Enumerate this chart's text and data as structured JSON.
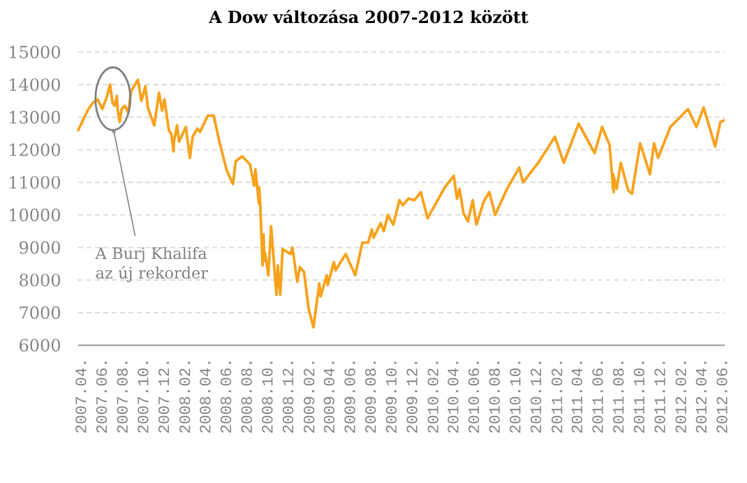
{
  "chart_data": {
    "type": "line",
    "title": "A Dow változása 2007-2012 között",
    "x": [
      "2007-03-24",
      "2007-04-09",
      "2007-04-23",
      "2007-05-07",
      "2007-05-20",
      "2007-06-03",
      "2007-06-17",
      "2007-06-26",
      "2007-07-03",
      "2007-07-09",
      "2007-07-16",
      "2007-07-18",
      "2007-07-24",
      "2007-07-30",
      "2007-08-08",
      "2007-08-18",
      "2007-08-27",
      "2007-09-16",
      "2007-09-26",
      "2007-10-08",
      "2007-10-15",
      "2007-11-03",
      "2007-11-17",
      "2007-11-26",
      "2007-12-03",
      "2007-12-16",
      "2007-12-23",
      "2007-12-30",
      "2007-12-31",
      "2008-01-09",
      "2008-01-15",
      "2008-02-04",
      "2008-02-16",
      "2008-02-24",
      "2008-03-09",
      "2008-03-17",
      "2008-04-09",
      "2008-04-26",
      "2008-05-14",
      "2008-06-04",
      "2008-06-22",
      "2008-06-30",
      "2008-07-19",
      "2008-08-11",
      "2008-08-23",
      "2008-08-27",
      "2008-09-06",
      "2008-09-07",
      "2008-09-10",
      "2008-09-17",
      "2008-09-20",
      "2008-09-22",
      "2008-09-24",
      "2008-09-29",
      "2008-10-04",
      "2008-10-12",
      "2008-10-28",
      "2008-11-01",
      "2008-11-08",
      "2008-11-15",
      "2008-12-08",
      "2008-12-14",
      "2008-12-28",
      "2009-01-05",
      "2009-01-17",
      "2009-01-31",
      "2009-02-14",
      "2009-03-03",
      "2009-03-07",
      "2009-03-25",
      "2009-03-28",
      "2009-04-15",
      "2009-04-20",
      "2009-05-20",
      "2009-06-17",
      "2009-07-08",
      "2009-07-25",
      "2009-08-05",
      "2009-08-10",
      "2009-08-31",
      "2009-09-09",
      "2009-09-21",
      "2009-10-07",
      "2009-10-25",
      "2009-11-04",
      "2009-11-21",
      "2009-12-08",
      "2009-12-27",
      "2010-01-16",
      "2010-03-08",
      "2010-04-03",
      "2010-04-13",
      "2010-04-20",
      "2010-05-02",
      "2010-05-15",
      "2010-05-29",
      "2010-06-09",
      "2010-06-30",
      "2010-07-17",
      "2010-08-03",
      "2010-09-07",
      "2010-10-13",
      "2010-10-24",
      "2010-12-08",
      "2011-01-26",
      "2011-02-21",
      "2011-04-06",
      "2011-05-23",
      "2011-06-14",
      "2011-07-06",
      "2011-07-12",
      "2011-07-16",
      "2011-07-17",
      "2011-07-18",
      "2011-07-19",
      "2011-07-27",
      "2011-08-08",
      "2011-08-30",
      "2011-09-10",
      "2011-10-04",
      "2011-11-02",
      "2011-11-14",
      "2011-11-26",
      "2012-01-01",
      "2012-02-22",
      "2012-03-18",
      "2012-04-08",
      "2012-05-12",
      "2012-05-27",
      "2012-06-06"
    ],
    "series": [
      {
        "color": "#f7a21b",
        "values": [
          12600,
          12950,
          13250,
          13450,
          13550,
          13250,
          13650,
          14000,
          13450,
          13350,
          13650,
          13250,
          12850,
          13250,
          13350,
          13150,
          13800,
          14150,
          13500,
          13950,
          13300,
          12750,
          13750,
          13200,
          13550,
          12600,
          12500,
          11950,
          12250,
          12750,
          12250,
          12700,
          11750,
          12400,
          12650,
          12550,
          13050,
          13050,
          12200,
          11350,
          10950,
          11650,
          11800,
          11550,
          10900,
          11400,
          10350,
          10850,
          10350,
          8450,
          9400,
          8600,
          8850,
          8500,
          8150,
          9650,
          7550,
          8450,
          7550,
          8950,
          8800,
          9000,
          7950,
          8400,
          8250,
          7100,
          6550,
          7900,
          7500,
          8150,
          7850,
          8550,
          8300,
          8800,
          8150,
          9150,
          9150,
          9550,
          9300,
          9750,
          9500,
          10000,
          9700,
          10450,
          10300,
          10500,
          10450,
          10700,
          9900,
          10850,
          11200,
          10500,
          10800,
          10050,
          9800,
          10450,
          9700,
          10400,
          10700,
          10000,
          10800,
          11450,
          11000,
          11600,
          12400,
          11600,
          12800,
          11900,
          12700,
          12150,
          11400,
          10800,
          11250,
          10700,
          11150,
          10800,
          11600,
          10750,
          10650,
          12200,
          11250,
          12200,
          11750,
          12700,
          13250,
          12700,
          13300,
          12100,
          12850,
          12900
        ]
      }
    ],
    "xlim": [
      "2007-03-24",
      "2012-06-09"
    ],
    "ylim": [
      6000,
      15000
    ],
    "xticks": [
      {
        "value": "2007-04",
        "label": "2007.04."
      },
      {
        "value": "2007-06",
        "label": "2007.06."
      },
      {
        "value": "2007-08",
        "label": "2007.08."
      },
      {
        "value": "2007-10",
        "label": "2007.10."
      },
      {
        "value": "2007-12",
        "label": "2007.12."
      },
      {
        "value": "2008-02",
        "label": "2008.02."
      },
      {
        "value": "2008-04",
        "label": "2008.04."
      },
      {
        "value": "2008-06",
        "label": "2008.06."
      },
      {
        "value": "2008-08",
        "label": "2008.08."
      },
      {
        "value": "2008-10",
        "label": "2008.10."
      },
      {
        "value": "2008-12",
        "label": "2008.12."
      },
      {
        "value": "2009-02",
        "label": "2009.02."
      },
      {
        "value": "2009-04",
        "label": "2009.04."
      },
      {
        "value": "2009-06",
        "label": "2009.06."
      },
      {
        "value": "2009-08",
        "label": "2009.08."
      },
      {
        "value": "2009-10",
        "label": "2009.10."
      },
      {
        "value": "2009-12",
        "label": "2009.12."
      },
      {
        "value": "2010-02",
        "label": "2010.02."
      },
      {
        "value": "2010-04",
        "label": "2010.04."
      },
      {
        "value": "2010-06",
        "label": "2010.06."
      },
      {
        "value": "2010-08",
        "label": "2010.08."
      },
      {
        "value": "2010-10",
        "label": "2010.10."
      },
      {
        "value": "2010-12",
        "label": "2010.12."
      },
      {
        "value": "2011-02",
        "label": "2011.02."
      },
      {
        "value": "2011-04",
        "label": "2011.04."
      },
      {
        "value": "2011-06",
        "label": "2011.06."
      },
      {
        "value": "2011-08",
        "label": "2011.08."
      },
      {
        "value": "2011-10",
        "label": "2011.10."
      },
      {
        "value": "2011-12",
        "label": "2011.12."
      },
      {
        "value": "2012-02",
        "label": "2012.02."
      },
      {
        "value": "2012-04",
        "label": "2012.04."
      },
      {
        "value": "2012-06",
        "label": "2012.06."
      }
    ],
    "yticks": [
      6000,
      7000,
      8000,
      9000,
      10000,
      11000,
      12000,
      13000,
      14000,
      15000
    ],
    "grid": "y",
    "marker": "none",
    "annotations": [
      {
        "text": "A Burj Khalifa az új rekorder",
        "x": "2007-07-24",
        "y": 12850
      }
    ]
  }
}
